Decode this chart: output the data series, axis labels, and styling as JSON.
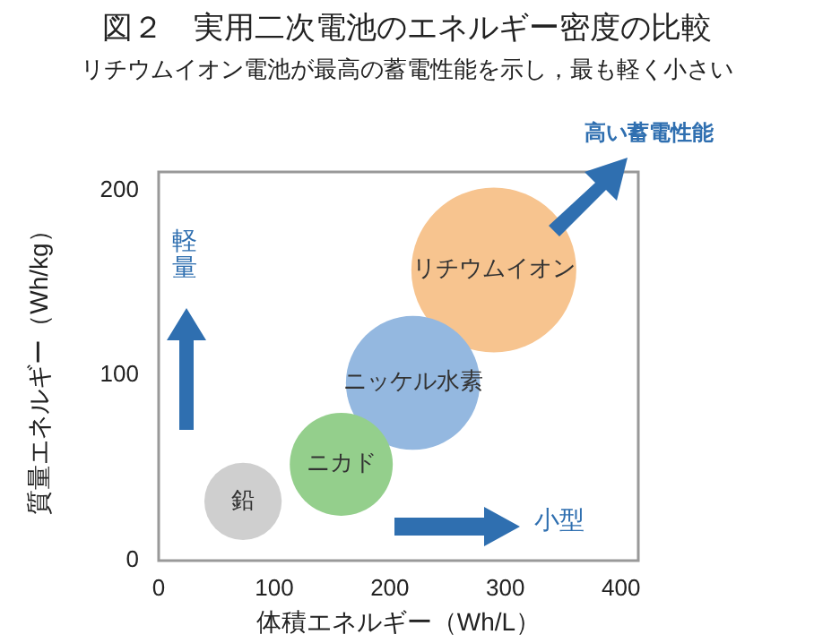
{
  "chart_data": {
    "type": "bubble",
    "title": "図２　実用二次電池のエネルギー密度の比較",
    "subtitle": "リチウムイオン電池が最高の蓄電性能を示し，最も軽く小さい",
    "xlabel": "体積エネルギー（Wh/L）",
    "ylabel": "質量エネルギー（Wh/kg）",
    "annotations": [
      "高い蓄電性能",
      "軽量",
      "小型"
    ],
    "xlim": [
      0,
      415
    ],
    "xticks": [
      0,
      100,
      200,
      300,
      400
    ],
    "ylim": [
      0,
      210
    ],
    "yticks": [
      0,
      100,
      200
    ],
    "grid": false,
    "legend": false,
    "series": [
      {
        "name": "鉛",
        "color": "#cfcfcf",
        "x": [
          73
        ],
        "values": [
          32
        ],
        "sizes": [
          0.22
        ]
      },
      {
        "name": "ニカド",
        "color": "#94cf8c",
        "x": [
          158
        ],
        "values": [
          52
        ],
        "sizes": [
          0.39
        ]
      },
      {
        "name": "ニッケル水素",
        "color": "#94b8e0",
        "x": [
          220
        ],
        "values": [
          96
        ],
        "sizes": [
          0.66
        ]
      },
      {
        "name": "リチウムイオン",
        "color": "#f7c48f",
        "x": [
          290
        ],
        "values": [
          157
        ],
        "sizes": [
          1
        ]
      }
    ]
  }
}
